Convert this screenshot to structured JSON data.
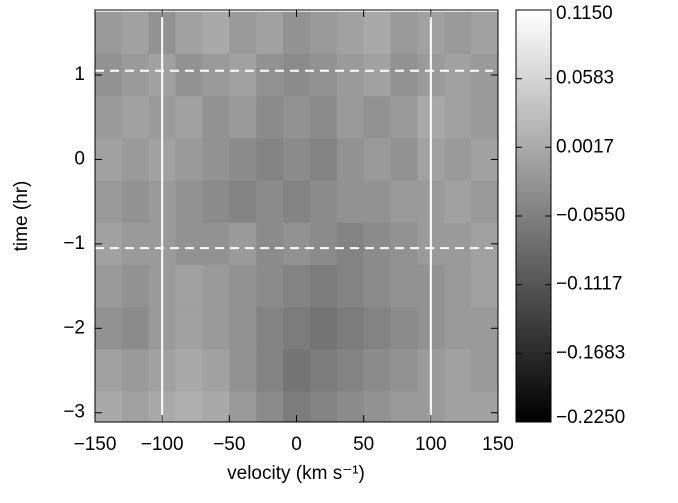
{
  "chart_data": {
    "type": "heatmap",
    "xlabel": "velocity  (km s⁻¹)",
    "ylabel": "time (hr)",
    "colormap": "gray",
    "x": [
      -140,
      -120,
      -100,
      -80,
      -60,
      -40,
      -20,
      0,
      20,
      40,
      60,
      80,
      100,
      120,
      140
    ],
    "y": [
      1.5,
      1.0,
      0.5,
      0,
      -0.5,
      -1.0,
      -1.5,
      -2.0,
      -2.5,
      -3.0
    ],
    "z": [
      [
        -0.02,
        -0.01,
        -0.03,
        -0.01,
        0.0,
        -0.02,
        -0.01,
        -0.03,
        -0.02,
        -0.01,
        0.0,
        -0.02,
        -0.01,
        -0.02,
        -0.01
      ],
      [
        -0.03,
        -0.02,
        -0.01,
        -0.03,
        -0.02,
        -0.01,
        -0.03,
        -0.04,
        -0.03,
        -0.02,
        -0.01,
        -0.03,
        -0.02,
        -0.01,
        -0.02
      ],
      [
        -0.02,
        -0.01,
        -0.02,
        -0.01,
        -0.03,
        -0.02,
        -0.04,
        -0.03,
        -0.04,
        -0.02,
        -0.03,
        -0.02,
        0.0,
        -0.01,
        -0.02
      ],
      [
        -0.01,
        -0.02,
        -0.01,
        -0.02,
        -0.03,
        -0.04,
        -0.05,
        -0.04,
        -0.05,
        -0.03,
        -0.02,
        -0.03,
        -0.01,
        -0.02,
        -0.01
      ],
      [
        -0.02,
        -0.03,
        -0.02,
        -0.03,
        -0.04,
        -0.05,
        -0.04,
        -0.05,
        -0.04,
        -0.03,
        -0.03,
        -0.02,
        -0.02,
        -0.01,
        -0.02
      ],
      [
        -0.01,
        -0.02,
        -0.02,
        -0.03,
        -0.03,
        -0.02,
        -0.04,
        -0.03,
        -0.04,
        -0.05,
        -0.04,
        -0.03,
        -0.02,
        -0.02,
        -0.01
      ],
      [
        -0.02,
        -0.03,
        -0.02,
        -0.01,
        -0.02,
        -0.03,
        -0.04,
        -0.05,
        -0.06,
        -0.05,
        -0.04,
        -0.03,
        -0.03,
        -0.02,
        -0.01
      ],
      [
        -0.03,
        -0.04,
        -0.02,
        -0.01,
        -0.02,
        -0.03,
        -0.05,
        -0.06,
        -0.07,
        -0.06,
        -0.05,
        -0.04,
        -0.03,
        -0.02,
        -0.02
      ],
      [
        -0.01,
        -0.02,
        -0.01,
        0.0,
        -0.01,
        -0.03,
        -0.05,
        -0.07,
        -0.06,
        -0.05,
        -0.04,
        -0.03,
        -0.02,
        -0.01,
        -0.02
      ],
      [
        0.0,
        -0.01,
        0.0,
        0.01,
        0.0,
        -0.02,
        -0.04,
        -0.06,
        -0.05,
        -0.04,
        -0.03,
        -0.02,
        -0.02,
        -0.01,
        -0.01
      ]
    ],
    "xlim": [
      -150,
      150
    ],
    "xticks": [
      {
        "value": -150,
        "label": "−150"
      },
      {
        "value": -100,
        "label": "−100"
      },
      {
        "value": -50,
        "label": "−50"
      },
      0,
      50,
      100,
      150
    ],
    "ylim": [
      -3.11,
      1.77
    ],
    "yticks": [
      1,
      0,
      {
        "value": -1,
        "label": "−1"
      },
      {
        "value": -2,
        "label": "−2"
      },
      {
        "value": -3,
        "label": "−3"
      }
    ],
    "vlines": [
      -100,
      100
    ],
    "hlines": [
      1.05,
      -1.05
    ],
    "zlim": [
      -0.225,
      0.115
    ],
    "zticks": [
      {
        "value": 0.115,
        "label": "0.1150"
      },
      {
        "value": 0.0583,
        "label": "0.0583"
      },
      {
        "value": 0.0017,
        "label": "0.0017"
      },
      {
        "value": -0.055,
        "label": "−0.0550"
      },
      {
        "value": -0.1117,
        "label": "−0.1117"
      },
      {
        "value": -0.1683,
        "label": "−0.1683"
      },
      {
        "value": -0.225,
        "label": "−0.2250"
      }
    ]
  }
}
